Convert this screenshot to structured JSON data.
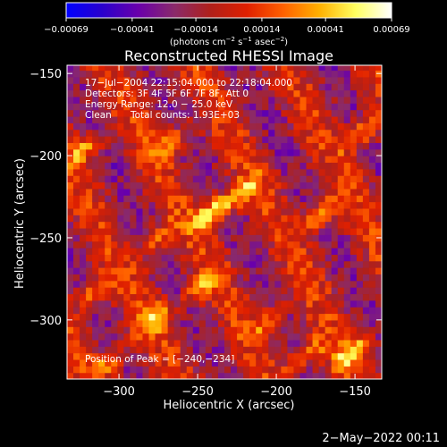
{
  "chart_data": {
    "type": "heatmap",
    "title": "Reconstructed RHESSI Image",
    "xlabel": "Heliocentric X (arcsec)",
    "ylabel": "Heliocentric Y (arcsec)",
    "xlim": [
      -333,
      -133
    ],
    "ylim": [
      -336,
      -145
    ],
    "x_ticks": [
      -300,
      -250,
      -200,
      -150
    ],
    "y_ticks": [
      -150,
      -200,
      -250,
      -300
    ],
    "x_tick_labels": [
      "−300",
      "−250",
      "−200",
      "−150"
    ],
    "y_tick_labels": [
      "−150",
      "−200",
      "−250",
      "−300"
    ],
    "colorbar": {
      "range": [
        -0.00069,
        0.00069
      ],
      "ticks": [
        -0.00069,
        -0.00041,
        -0.00014,
        0.00014,
        0.00041,
        0.00069
      ],
      "tick_labels": [
        "−0.00069",
        "−0.00041",
        "−0.00014",
        "0.00014",
        "0.00041",
        "0.00069"
      ],
      "units_text": "(photons cm",
      "units_exp1": "−2",
      "units_s": " s",
      "units_exp2": "−1",
      "units_asec": " asec",
      "units_exp3": "−2",
      "units_close": ")",
      "colormap": [
        "#0000ff",
        "#2a00cc",
        "#6a00aa",
        "#8a2a6a",
        "#b0201a",
        "#e02000",
        "#ff6000",
        "#ffb000",
        "#ffff60",
        "#ffffff"
      ]
    },
    "annotations": {
      "line1": "17−Jul−2004 22:15:04.000 to 22:18:04.000",
      "line2": "Detectors: 3F 4F 5F 6F 7F 8F, Att 0",
      "line3": "Energy Range: 12.0 − 25.0 keV",
      "line4_a": "Clean",
      "line4_b": "Total counts: 1.93E+03",
      "peak": "Position of Peak = [−240,−234]"
    },
    "peak_position": [
      -240,
      -234
    ],
    "hotspots": [
      {
        "x": -240,
        "y": -234,
        "value": 0.00069
      },
      {
        "x": -222,
        "y": -222,
        "value": 0.00045
      },
      {
        "x": -172,
        "y": -236,
        "value": 0.00055
      },
      {
        "x": -145,
        "y": -185,
        "value": 0.00052
      },
      {
        "x": -320,
        "y": -195,
        "value": 0.00045
      },
      {
        "x": -315,
        "y": -282,
        "value": 0.00048
      },
      {
        "x": -278,
        "y": -300,
        "value": 0.00042
      },
      {
        "x": -152,
        "y": -320,
        "value": 0.0005
      },
      {
        "x": -180,
        "y": -320,
        "value": 0.00045
      },
      {
        "x": -248,
        "y": -280,
        "value": 0.0004
      },
      {
        "x": -275,
        "y": -250,
        "value": 0.00042
      },
      {
        "x": -205,
        "y": -300,
        "value": 0.00035
      },
      {
        "x": -265,
        "y": -190,
        "value": 0.00035
      },
      {
        "x": -305,
        "y": -325,
        "value": 0.00038
      }
    ],
    "grid": false
  },
  "footer": {
    "date": "2−May−2022 00:11"
  }
}
